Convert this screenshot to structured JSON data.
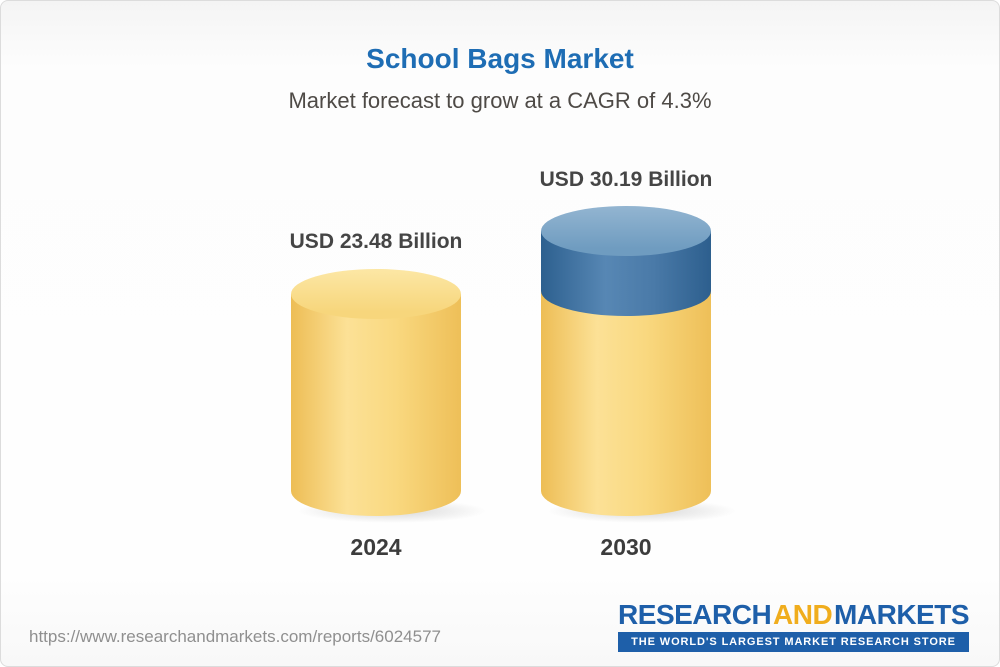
{
  "chart_data": {
    "type": "bar",
    "bar_style": "3d-cylinder",
    "title": "School Bags Market",
    "subtitle": "Market forecast to grow at a CAGR of 4.3%",
    "categories": [
      "2024",
      "2030"
    ],
    "values": [
      23.48,
      30.19
    ],
    "value_labels": [
      "USD 23.48 Billion",
      "USD 30.19 Billion"
    ],
    "unit": "USD Billion",
    "cagr_percent": 4.3,
    "grid": false,
    "legend_position": "none",
    "colors": {
      "base_segment": "#f6cf6e",
      "growth_segment": "#3d6f9e",
      "title_text": "#1e6db4",
      "logo_blue": "#1e5fa9",
      "logo_gold": "#f0ad1d"
    }
  },
  "header": {
    "title": "School Bags Market",
    "subtitle": "Market forecast to grow at a CAGR of 4.3%"
  },
  "bars": [
    {
      "year": "2024",
      "label": "USD 23.48 Billion",
      "value": 23.48
    },
    {
      "year": "2030",
      "label": "USD 30.19 Billion",
      "value": 30.19
    }
  ],
  "footer": {
    "url": "https://www.researchandmarkets.com/reports/6024577",
    "logo": {
      "research": "RESEARCH",
      "and": "AND",
      "markets": "MARKETS",
      "tagline": "THE WORLD'S LARGEST MARKET RESEARCH STORE"
    }
  }
}
